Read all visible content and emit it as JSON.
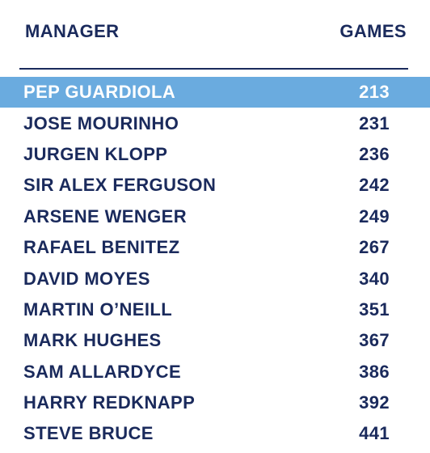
{
  "header": {
    "manager_label": "MANAGER",
    "games_label": "GAMES"
  },
  "colors": {
    "text": "#1a2a5c",
    "highlight": "#6aabdf"
  },
  "rows": [
    {
      "manager": "PEP GUARDIOLA",
      "games": "213",
      "highlighted": true
    },
    {
      "manager": "JOSE MOURINHO",
      "games": "231",
      "highlighted": false
    },
    {
      "manager": "JURGEN KLOPP",
      "games": "236",
      "highlighted": false
    },
    {
      "manager": "SIR ALEX FERGUSON",
      "games": "242",
      "highlighted": false
    },
    {
      "manager": "ARSENE WENGER",
      "games": "249",
      "highlighted": false
    },
    {
      "manager": "RAFAEL BENITEZ",
      "games": "267",
      "highlighted": false
    },
    {
      "manager": "DAVID MOYES",
      "games": "340",
      "highlighted": false
    },
    {
      "manager": "MARTIN O’NEILL",
      "games": "351",
      "highlighted": false
    },
    {
      "manager": "MARK HUGHES",
      "games": "367",
      "highlighted": false
    },
    {
      "manager": "SAM ALLARDYCE",
      "games": "386",
      "highlighted": false
    },
    {
      "manager": "HARRY REDKNAPP",
      "games": "392",
      "highlighted": false
    },
    {
      "manager": "STEVE BRUCE",
      "games": "441",
      "highlighted": false
    }
  ]
}
